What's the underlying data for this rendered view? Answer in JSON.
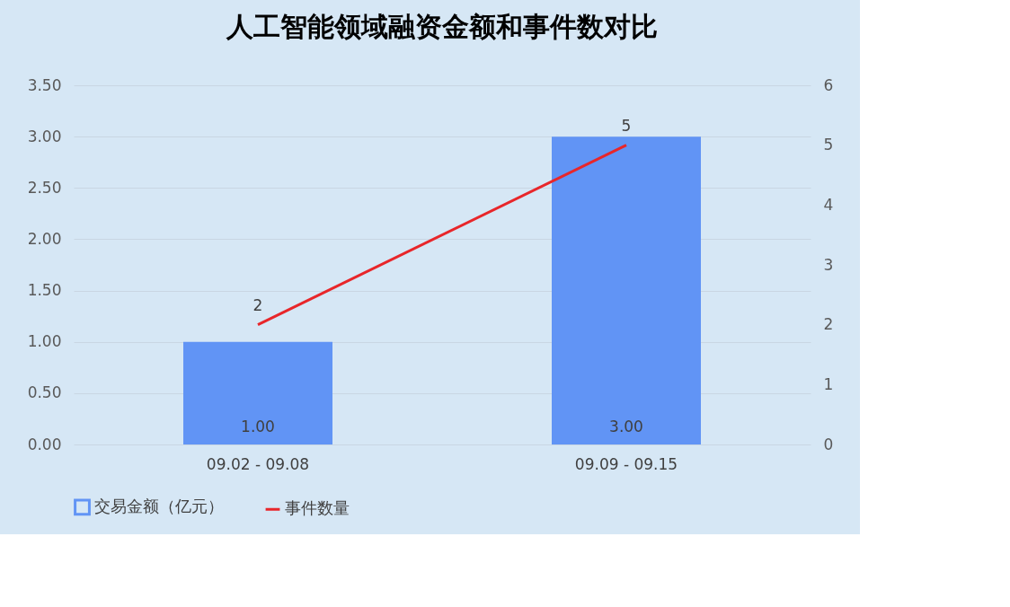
{
  "chart_data": {
    "type": "bar",
    "title": "人工智能领域融资金额和事件数对比",
    "categories": [
      "09.02 - 09.08",
      "09.09 - 09.15"
    ],
    "series": [
      {
        "name": "交易金额（亿元）",
        "color": "#6194f5",
        "values": [
          1.0,
          3.0
        ],
        "value_labels": [
          "1.00",
          "3.00"
        ]
      },
      {
        "name": "事件数量",
        "type": "line",
        "axis": "y2",
        "color": "#e8262a",
        "values": [
          2,
          5
        ],
        "value_labels": [
          "2",
          "5"
        ]
      }
    ],
    "ylim": [
      0,
      3.5
    ],
    "yticks": [
      {
        "value": 0,
        "label": "0.00"
      },
      {
        "value": 0.5,
        "label": "0.50"
      },
      {
        "value": 1,
        "label": "1.00"
      },
      {
        "value": 1.5,
        "label": "1.50"
      },
      {
        "value": 2,
        "label": "2.00"
      },
      {
        "value": 2.5,
        "label": "2.50"
      },
      {
        "value": 3,
        "label": "3.00"
      },
      {
        "value": 3.5,
        "label": "3.50"
      }
    ],
    "y2lim": [
      0,
      6
    ],
    "y2ticks": [
      0,
      1,
      2,
      3,
      4,
      5,
      6
    ],
    "grid": "y",
    "legend": "bottom",
    "marker": "none",
    "line_style": "solid"
  }
}
